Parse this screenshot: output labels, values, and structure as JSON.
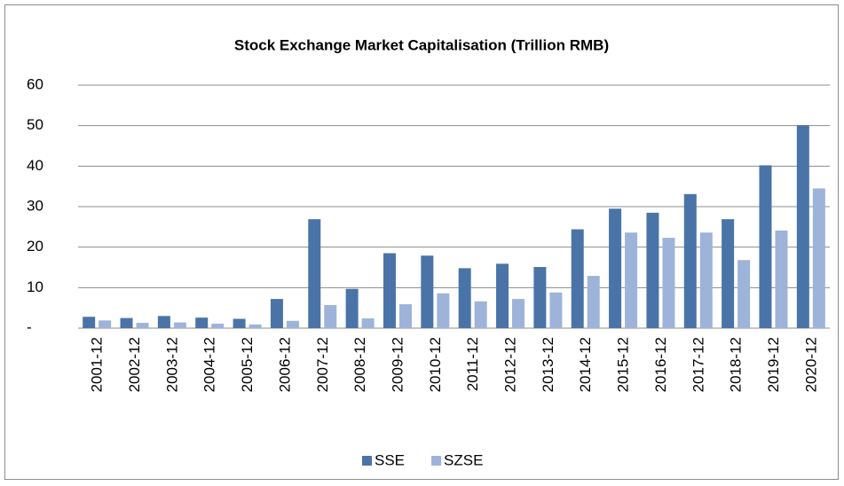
{
  "chart_data": {
    "type": "bar",
    "title": "Stock Exchange  Market Capitalisation  (Trillion RMB)",
    "categories": [
      "2001-12",
      "2002-12",
      "2003-12",
      "2004-12",
      "2005-12",
      "2006-12",
      "2007-12",
      "2008-12",
      "2009-12",
      "2010-12",
      "2011-12",
      "2012-12",
      "2013-12",
      "2014-12",
      "2015-12",
      "2016-12",
      "2017-12",
      "2018-12",
      "2019-12",
      "2020-12"
    ],
    "series": [
      {
        "name": "SSE",
        "color": "#4a74a8",
        "values": [
          2.8,
          2.5,
          3.0,
          2.6,
          2.3,
          7.2,
          26.9,
          9.7,
          18.5,
          17.9,
          14.8,
          15.9,
          15.1,
          24.4,
          29.5,
          28.5,
          33.1,
          26.9,
          40.2,
          50.1
        ]
      },
      {
        "name": "SZSE",
        "color": "#9db3d9",
        "values": [
          1.9,
          1.3,
          1.4,
          1.1,
          0.9,
          1.8,
          5.7,
          2.4,
          5.9,
          8.6,
          6.6,
          7.2,
          8.8,
          12.9,
          23.6,
          22.3,
          23.6,
          16.8,
          24.1,
          34.5
        ]
      }
    ],
    "ylim": [
      0,
      60
    ],
    "yticks": [
      {
        "value": 0,
        "label": "-"
      },
      10,
      20,
      30,
      40,
      50,
      60
    ],
    "grid": true,
    "legend": "bottom"
  }
}
